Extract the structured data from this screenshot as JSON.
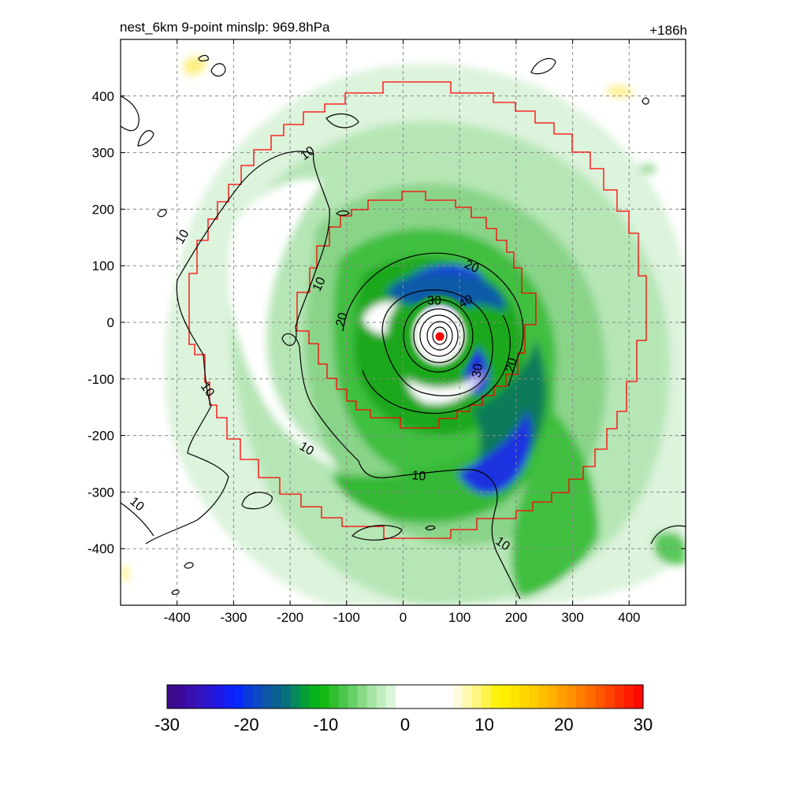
{
  "header": {
    "title": "nest_6km  9-point minslp: 969.8hPa",
    "time_label": "+186h"
  },
  "chart_data": {
    "type": "heatmap",
    "title": "nest_6km  9-point minslp: 969.8hPa",
    "time_label": "+186h",
    "x_ticks": [
      -400,
      -300,
      -200,
      -100,
      0,
      100,
      200,
      300,
      400
    ],
    "y_ticks": [
      400,
      300,
      200,
      100,
      0,
      -100,
      -200,
      -300,
      -400
    ],
    "xlim": [
      -500,
      500
    ],
    "ylim": [
      -500,
      500
    ],
    "grid": true,
    "colorbar": {
      "range": [
        -30,
        30
      ],
      "ticks": [
        -30,
        -20,
        -10,
        0,
        10,
        20,
        30
      ],
      "colors": [
        "#3c0a8c",
        "#3c0a9a",
        "#3a0fad",
        "#3414be",
        "#2a16d2",
        "#1e18e6",
        "#1020f6",
        "#0828ff",
        "#0a3ad8",
        "#0c48c2",
        "#0d56a8",
        "#0a6090",
        "#08707a",
        "#068a5c",
        "#04a036",
        "#08b21c",
        "#14b814",
        "#2ebe2e",
        "#4ac64a",
        "#68d068",
        "#86da86",
        "#a4e4a4",
        "#c0eec0",
        "#daf6da",
        "#ffffff",
        "#ffffff",
        "#ffffff",
        "#ffffff",
        "#ffffff",
        "#ffffff",
        "#fffbe0",
        "#fff8b0",
        "#fff680",
        "#fff448",
        "#fff210",
        "#ffee00",
        "#ffe400",
        "#ffd800",
        "#ffcc00",
        "#ffbe00",
        "#ffb000",
        "#ffa000",
        "#ff9000",
        "#ff7e00",
        "#ff6c00",
        "#ff5800",
        "#ff4400",
        "#ff3000",
        "#ff1c00",
        "#ff0800"
      ]
    },
    "contour_labels": [
      {
        "text": "10",
        "x": -170,
        "y": 300,
        "angle": -35
      },
      {
        "text": "10",
        "x": -392,
        "y": 152,
        "angle": -60
      },
      {
        "text": "10",
        "x": -150,
        "y": 68,
        "angle": -65
      },
      {
        "text": "10",
        "x": -345,
        "y": -118,
        "angle": 55
      },
      {
        "text": "10",
        "x": -170,
        "y": -222,
        "angle": 30
      },
      {
        "text": "10",
        "x": 28,
        "y": -270,
        "angle": 5
      },
      {
        "text": "10",
        "x": -470,
        "y": -320,
        "angle": 40
      },
      {
        "text": "10",
        "x": 177,
        "y": -390,
        "angle": 35
      },
      {
        "text": "20",
        "x": 122,
        "y": 100,
        "angle": 25
      },
      {
        "text": "20",
        "x": -110,
        "y": 5,
        "angle": -75
      },
      {
        "text": "20",
        "x": 190,
        "y": -75,
        "angle": -75
      },
      {
        "text": "30",
        "x": 55,
        "y": 40,
        "angle": 0
      },
      {
        "text": "40",
        "x": 110,
        "y": 38,
        "angle": -30
      },
      {
        "text": "30",
        "x": 130,
        "y": -85,
        "angle": -80
      }
    ],
    "center_marker": {
      "x": 65,
      "y": -25
    }
  }
}
